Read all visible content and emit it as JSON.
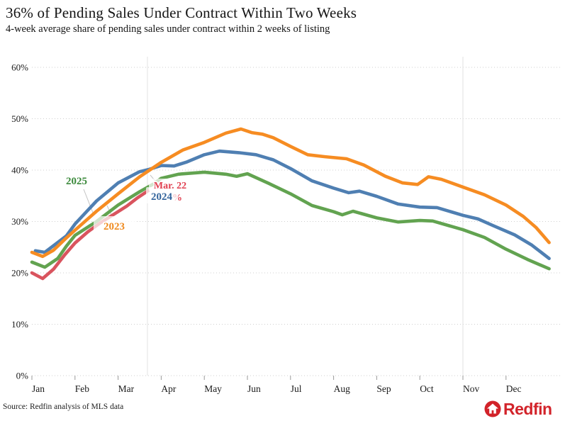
{
  "header": {
    "title": "36% of Pending Sales Under Contract Within Two Weeks",
    "subtitle": "4-week average share of pending sales under contract within 2 weeks of listing"
  },
  "footer": {
    "source": "Source: Redfin analysis of MLS data",
    "logo_text": "Redfin",
    "logo_color": "#d2232a"
  },
  "chart_data": {
    "type": "line",
    "title": "36% of Pending Sales Under Contract Within Two Weeks",
    "subtitle": "4-week average share of pending sales under contract within 2 weeks of listing",
    "xlabel": "",
    "ylabel": "",
    "x_axis": {
      "unit": "months",
      "tick_labels": [
        "Jan",
        "Feb",
        "Mar",
        "Apr",
        "May",
        "Jun",
        "Jul",
        "Aug",
        "Sep",
        "Oct",
        "Nov",
        "Dec"
      ],
      "range_months": [
        0,
        12
      ]
    },
    "y_axis": {
      "min": 0,
      "max": 60,
      "tick_step": 10,
      "tick_labels": [
        "0%",
        "10%",
        "20%",
        "30%",
        "40%",
        "50%",
        "60%"
      ],
      "grid": true
    },
    "legend_position": "inline-labels",
    "vertical_marker_months": [
      2.68,
      10.0
    ],
    "series": [
      {
        "id": "blue",
        "year_label": "2024",
        "color": "#4f7fb2",
        "label_color": "#33649c",
        "points": [
          [
            0.08,
            24.3
          ],
          [
            0.3,
            24.0
          ],
          [
            0.8,
            27.2
          ],
          [
            1,
            29.5
          ],
          [
            1.5,
            34.0
          ],
          [
            2,
            37.5
          ],
          [
            2.5,
            39.7
          ],
          [
            2.7,
            40.1
          ],
          [
            3,
            40.9
          ],
          [
            3.3,
            40.8
          ],
          [
            3.6,
            41.6
          ],
          [
            4,
            43.0
          ],
          [
            4.35,
            43.7
          ],
          [
            4.8,
            43.4
          ],
          [
            5.2,
            43.0
          ],
          [
            5.6,
            42.0
          ],
          [
            6,
            40.3
          ],
          [
            6.5,
            37.9
          ],
          [
            7,
            36.5
          ],
          [
            7.35,
            35.6
          ],
          [
            7.6,
            35.9
          ],
          [
            8,
            34.9
          ],
          [
            8.5,
            33.4
          ],
          [
            9,
            32.8
          ],
          [
            9.4,
            32.7
          ],
          [
            10,
            31.2
          ],
          [
            10.35,
            30.5
          ],
          [
            10.7,
            29.2
          ],
          [
            11.2,
            27.4
          ],
          [
            11.6,
            25.4
          ],
          [
            12,
            22.8
          ]
        ]
      },
      {
        "id": "orange",
        "year_label": "2023",
        "color": "#f68c22",
        "label_color": "#ef8b20",
        "points": [
          [
            0,
            24.0
          ],
          [
            0.25,
            23.2
          ],
          [
            0.5,
            24.4
          ],
          [
            0.8,
            26.8
          ],
          [
            1,
            28.3
          ],
          [
            1.5,
            32.0
          ],
          [
            2,
            35.4
          ],
          [
            2.5,
            38.7
          ],
          [
            3,
            41.5
          ],
          [
            3.5,
            43.9
          ],
          [
            4,
            45.4
          ],
          [
            4.5,
            47.2
          ],
          [
            4.85,
            48.0
          ],
          [
            5.1,
            47.3
          ],
          [
            5.35,
            47.0
          ],
          [
            5.6,
            46.3
          ],
          [
            6,
            44.6
          ],
          [
            6.4,
            43.0
          ],
          [
            6.8,
            42.6
          ],
          [
            7.3,
            42.2
          ],
          [
            7.7,
            41.0
          ],
          [
            8.2,
            38.8
          ],
          [
            8.6,
            37.5
          ],
          [
            8.95,
            37.2
          ],
          [
            9.2,
            38.7
          ],
          [
            9.5,
            38.2
          ],
          [
            10,
            36.7
          ],
          [
            10.5,
            35.2
          ],
          [
            11,
            33.2
          ],
          [
            11.4,
            31.0
          ],
          [
            11.7,
            28.8
          ],
          [
            12,
            25.9
          ]
        ]
      },
      {
        "id": "green",
        "year_label": "2025",
        "color": "#62a350",
        "label_color": "#3c8a3c",
        "points": [
          [
            0,
            22.1
          ],
          [
            0.3,
            21.1
          ],
          [
            0.6,
            22.8
          ],
          [
            0.8,
            25.2
          ],
          [
            1,
            27.3
          ],
          [
            1.5,
            30.0
          ],
          [
            2,
            33.2
          ],
          [
            2.5,
            35.8
          ],
          [
            2.8,
            37.2
          ],
          [
            3,
            38.4
          ],
          [
            3.4,
            39.2
          ],
          [
            4,
            39.6
          ],
          [
            4.5,
            39.2
          ],
          [
            4.75,
            38.8
          ],
          [
            5,
            39.3
          ],
          [
            5.5,
            37.4
          ],
          [
            6,
            35.4
          ],
          [
            6.5,
            33.1
          ],
          [
            7,
            31.9
          ],
          [
            7.2,
            31.3
          ],
          [
            7.45,
            32.0
          ],
          [
            8,
            30.7
          ],
          [
            8.5,
            29.9
          ],
          [
            9,
            30.2
          ],
          [
            9.3,
            30.1
          ],
          [
            10,
            28.4
          ],
          [
            10.5,
            26.9
          ],
          [
            11,
            24.6
          ],
          [
            11.5,
            22.6
          ],
          [
            12,
            20.8
          ]
        ]
      },
      {
        "id": "red",
        "year_label": "",
        "annotation_date": "Mar. 22",
        "annotation_value": "36%",
        "color": "#d9545e",
        "label_color": "#e04050",
        "points": [
          [
            0,
            20.0
          ],
          [
            0.25,
            18.9
          ],
          [
            0.5,
            20.7
          ],
          [
            0.75,
            23.4
          ],
          [
            1,
            25.8
          ],
          [
            1.3,
            28.0
          ],
          [
            1.6,
            29.8
          ],
          [
            1.9,
            31.4
          ],
          [
            2.2,
            33.0
          ],
          [
            2.45,
            34.6
          ],
          [
            2.7,
            36.0
          ]
        ]
      }
    ],
    "annotations": {
      "date_label": "Mar. 22",
      "value_label": "36%"
    }
  }
}
